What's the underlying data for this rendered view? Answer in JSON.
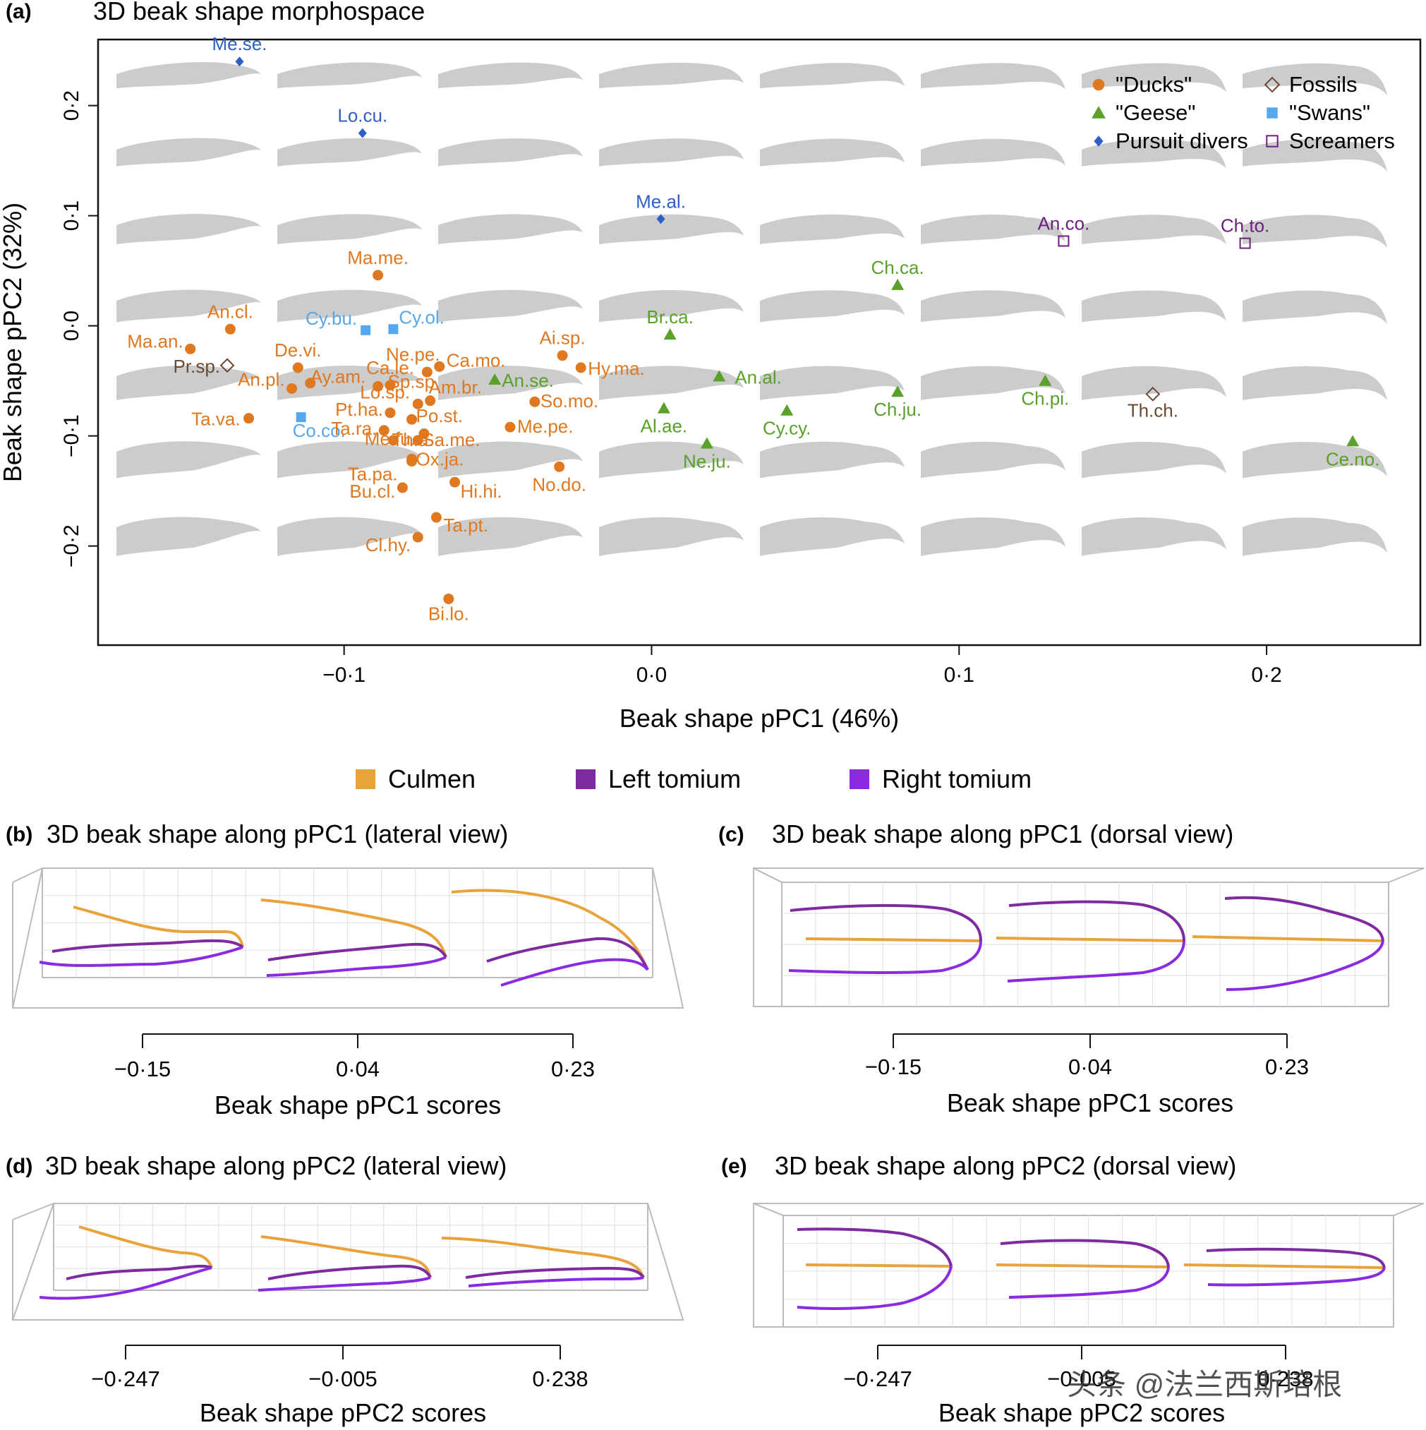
{
  "panels": {
    "a": {
      "letter": "(a)",
      "title": "3D beak shape morphospace"
    },
    "b": {
      "letter": "(b)",
      "title": "3D beak shape along pPC1 (lateral view)"
    },
    "c": {
      "letter": "(c)",
      "title": "3D beak shape along pPC1 (dorsal view)"
    },
    "d": {
      "letter": "(d)",
      "title": "3D beak shape along pPC2 (lateral view)"
    },
    "e": {
      "letter": "(e)",
      "title": "3D beak shape along pPC2 (dorsal view)"
    }
  },
  "colors": {
    "ducks": "#E07820",
    "geese": "#5AA12A",
    "pursuit": "#2E5FC8",
    "fossils": "#6B4A36",
    "swans": "#55A8EE",
    "screamers": "#6E1F80",
    "culmen": "#E8A33A",
    "left_tomium": "#7E2BA0",
    "right_tomium": "#8A2BE2",
    "silhouette": "#cccccc"
  },
  "curve_legend": [
    {
      "key": "culmen",
      "label": "Culmen"
    },
    {
      "key": "left_tomium",
      "label": "Left tomium"
    },
    {
      "key": "right_tomium",
      "label": "Right tomium"
    }
  ],
  "bottom_axes": {
    "b": {
      "ticks": [
        "−0·15",
        "0·04",
        "0·23"
      ],
      "label": "Beak shape pPC1 scores"
    },
    "c": {
      "ticks": [
        "−0·15",
        "0·04",
        "0·23"
      ],
      "label": "Beak shape pPC1 scores"
    },
    "d": {
      "ticks": [
        "−0·247",
        "−0·005",
        "0·238"
      ],
      "label": "Beak shape pPC2 scores"
    },
    "e": {
      "ticks": [
        "−0·247",
        "−0·005",
        "0·238"
      ],
      "label": "Beak shape pPC2 scores"
    }
  },
  "watermark": "头条 @法兰西斯培根",
  "chart_data": {
    "type": "scatter",
    "title": "3D beak shape morphospace",
    "xlabel": "Beak shape pPC1 (46%)",
    "ylabel": "Beak shape pPC2 (32%)",
    "xlim": [
      -0.18,
      0.25
    ],
    "ylim": [
      -0.29,
      0.26
    ],
    "xticks": [
      -0.1,
      0.0,
      0.1,
      0.2
    ],
    "xtick_labels": [
      "−0·1",
      "0·0",
      "0·1",
      "0·2"
    ],
    "yticks": [
      -0.2,
      -0.1,
      0.0,
      0.1,
      0.2
    ],
    "ytick_labels": [
      "−0·2",
      "−0·1",
      "0·0",
      "0·1",
      "0·2"
    ],
    "legend": [
      {
        "group": "ducks",
        "label": "\"Ducks\"",
        "marker": "circle"
      },
      {
        "group": "geese",
        "label": "\"Geese\"",
        "marker": "triangle"
      },
      {
        "group": "pursuit",
        "label": "Pursuit divers",
        "marker": "diamond"
      },
      {
        "group": "fossils",
        "label": "Fossils",
        "marker": "open-diamond"
      },
      {
        "group": "swans",
        "label": "\"Swans\"",
        "marker": "square"
      },
      {
        "group": "screamers",
        "label": "Screamers",
        "marker": "open-square"
      }
    ],
    "points": [
      {
        "label": "Me.se.",
        "group": "pursuit",
        "x": -0.134,
        "y": 0.24
      },
      {
        "label": "Lo.cu.",
        "group": "pursuit",
        "x": -0.094,
        "y": 0.175
      },
      {
        "label": "Me.al.",
        "group": "pursuit",
        "x": 0.003,
        "y": 0.097
      },
      {
        "label": "An.co.",
        "group": "screamers",
        "x": 0.134,
        "y": 0.077
      },
      {
        "label": "Ch.to.",
        "group": "screamers",
        "x": 0.193,
        "y": 0.075
      },
      {
        "label": "Ma.me.",
        "group": "ducks",
        "x": -0.089,
        "y": 0.046
      },
      {
        "label": "Ch.ca.",
        "group": "geese",
        "x": 0.08,
        "y": 0.037
      },
      {
        "label": "An.cl.",
        "group": "ducks",
        "x": -0.137,
        "y": -0.003
      },
      {
        "label": "Cy.bu.",
        "group": "swans",
        "x": -0.093,
        "y": -0.004
      },
      {
        "label": "Cy.ol.",
        "group": "swans",
        "x": -0.084,
        "y": -0.003
      },
      {
        "label": "Br.ca.",
        "group": "geese",
        "x": 0.006,
        "y": -0.008
      },
      {
        "label": "Ma.an.",
        "group": "ducks",
        "x": -0.15,
        "y": -0.021
      },
      {
        "label": "Pr.sp.",
        "group": "fossils",
        "x": -0.138,
        "y": -0.036
      },
      {
        "label": "De.vi.",
        "group": "ducks",
        "x": -0.115,
        "y": -0.038
      },
      {
        "label": "Ai.sp.",
        "group": "ducks",
        "x": -0.029,
        "y": -0.027
      },
      {
        "label": "Hy.ma.",
        "group": "ducks",
        "x": -0.023,
        "y": -0.038
      },
      {
        "label": "Ne.pe.",
        "group": "ducks",
        "x": -0.073,
        "y": -0.042
      },
      {
        "label": "Ca.mo.",
        "group": "ducks",
        "x": -0.069,
        "y": -0.037
      },
      {
        "label": "Ca.le.",
        "group": "ducks",
        "x": -0.085,
        "y": -0.054
      },
      {
        "label": "An.se.",
        "group": "geese",
        "x": -0.051,
        "y": -0.049
      },
      {
        "label": "An.pl.",
        "group": "ducks",
        "x": -0.117,
        "y": -0.057
      },
      {
        "label": "Ay.am.",
        "group": "ducks",
        "x": -0.111,
        "y": -0.052
      },
      {
        "label": "Sp.sp.",
        "group": "ducks",
        "x": -0.089,
        "y": -0.055
      },
      {
        "label": "An.al.",
        "group": "geese",
        "x": 0.022,
        "y": -0.046
      },
      {
        "label": "Am.br.",
        "group": "ducks",
        "x": -0.072,
        "y": -0.068
      },
      {
        "label": "So.mo.",
        "group": "ducks",
        "x": -0.038,
        "y": -0.069
      },
      {
        "label": "Ch.ju.",
        "group": "geese",
        "x": 0.08,
        "y": -0.06
      },
      {
        "label": "Ch.pi.",
        "group": "geese",
        "x": 0.128,
        "y": -0.05
      },
      {
        "label": "Lo.sp.",
        "group": "ducks",
        "x": -0.076,
        "y": -0.071
      },
      {
        "label": "Al.ae.",
        "group": "geese",
        "x": 0.004,
        "y": -0.075
      },
      {
        "label": "Cy.cy.",
        "group": "geese",
        "x": 0.044,
        "y": -0.077
      },
      {
        "label": "Th.ch.",
        "group": "fossils",
        "x": 0.163,
        "y": -0.062
      },
      {
        "label": "Pt.ha.",
        "group": "ducks",
        "x": -0.085,
        "y": -0.079
      },
      {
        "label": "Po.st.",
        "group": "ducks",
        "x": -0.078,
        "y": -0.085
      },
      {
        "label": "Ta.va.",
        "group": "ducks",
        "x": -0.131,
        "y": -0.084
      },
      {
        "label": "Co.co.",
        "group": "swans",
        "x": -0.114,
        "y": -0.083
      },
      {
        "label": "Me.pe.",
        "group": "ducks",
        "x": -0.046,
        "y": -0.092
      },
      {
        "label": "Ta.ra.",
        "group": "ducks",
        "x": -0.087,
        "y": -0.095
      },
      {
        "label": "Th.a.",
        "group": "ducks",
        "x": -0.084,
        "y": -0.104
      },
      {
        "label": "Sa.me.",
        "group": "ducks",
        "x": -0.076,
        "y": -0.104
      },
      {
        "label": "Me.fu.",
        "group": "ducks",
        "x": -0.074,
        "y": -0.098
      },
      {
        "label": "Ne.ju.",
        "group": "geese",
        "x": 0.018,
        "y": -0.107
      },
      {
        "label": "Ce.no.",
        "group": "geese",
        "x": 0.228,
        "y": -0.105
      },
      {
        "label": "Ox.ja.",
        "group": "ducks",
        "x": -0.078,
        "y": -0.123
      },
      {
        "label": "Ta.pa.",
        "group": "ducks",
        "x": -0.078,
        "y": -0.121
      },
      {
        "label": "No.do.",
        "group": "ducks",
        "x": -0.03,
        "y": -0.128
      },
      {
        "label": "Hi.hi.",
        "group": "ducks",
        "x": -0.064,
        "y": -0.142
      },
      {
        "label": "Bu.cl.",
        "group": "ducks",
        "x": -0.081,
        "y": -0.147
      },
      {
        "label": "Ta.pt.",
        "group": "ducks",
        "x": -0.07,
        "y": -0.174
      },
      {
        "label": "Cl.hy.",
        "group": "ducks",
        "x": -0.076,
        "y": -0.192
      },
      {
        "label": "Bi.lo.",
        "group": "ducks",
        "x": -0.066,
        "y": -0.248
      }
    ]
  }
}
